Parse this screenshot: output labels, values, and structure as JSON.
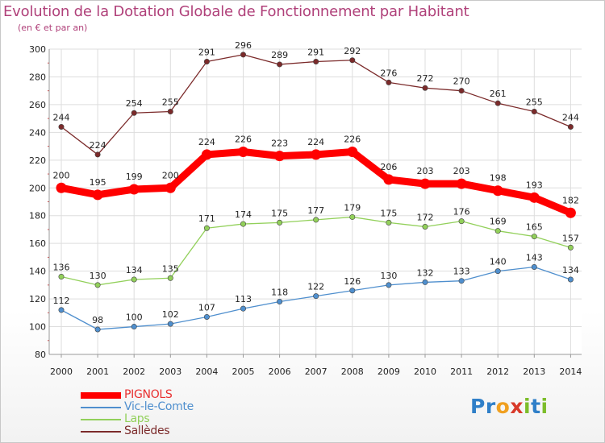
{
  "title": "Evolution de la Dotation Globale de Fonctionnement par Habitant",
  "subtitle": "(en € et par an)",
  "logo_text": "Proxiti",
  "colors": {
    "title": "#b0417a",
    "PIGNOLS": "#ff0000",
    "Vic-le-Comte": "#4f8fce",
    "Laps": "#92d05a",
    "Sallèdes": "#7b2a2a",
    "grid": "#dddddd"
  },
  "chart_data": {
    "type": "line",
    "title": "Evolution de la Dotation Globale de Fonctionnement par Habitant",
    "subtitle": "(en € et par an)",
    "xlabel": "",
    "ylabel": "",
    "ylim": [
      80,
      300
    ],
    "yticks": [
      80,
      100,
      120,
      140,
      160,
      180,
      200,
      220,
      240,
      260,
      280,
      300
    ],
    "grid": true,
    "legend_position": "bottom-left",
    "categories": [
      "2000",
      "2001",
      "2002",
      "2003",
      "2004",
      "2005",
      "2006",
      "2007",
      "2008",
      "2009",
      "2010",
      "2011",
      "2012",
      "2013",
      "2014"
    ],
    "series": [
      {
        "name": "Sallèdes",
        "color": "#7b2a2a",
        "values": [
          244,
          224,
          254,
          255,
          291,
          296,
          289,
          291,
          292,
          276,
          272,
          270,
          261,
          255,
          244
        ]
      },
      {
        "name": "PIGNOLS",
        "color": "#ff0000",
        "values": [
          200,
          195,
          199,
          200,
          224,
          226,
          223,
          224,
          226,
          206,
          203,
          203,
          198,
          193,
          182
        ]
      },
      {
        "name": "Laps",
        "color": "#92d05a",
        "values": [
          136,
          130,
          134,
          135,
          171,
          174,
          175,
          177,
          179,
          175,
          172,
          176,
          169,
          165,
          157
        ]
      },
      {
        "name": "Vic-le-Comte",
        "color": "#4f8fce",
        "values": [
          112,
          98,
          100,
          102,
          107,
          113,
          118,
          122,
          126,
          130,
          132,
          133,
          140,
          143,
          134
        ]
      }
    ]
  },
  "legend": [
    {
      "name": "PIGNOLS",
      "color": "#ff0000"
    },
    {
      "name": "Vic-le-Comte",
      "color": "#4f8fce"
    },
    {
      "name": "Laps",
      "color": "#92d05a"
    },
    {
      "name": "Sallèdes",
      "color": "#7b2a2a"
    }
  ]
}
